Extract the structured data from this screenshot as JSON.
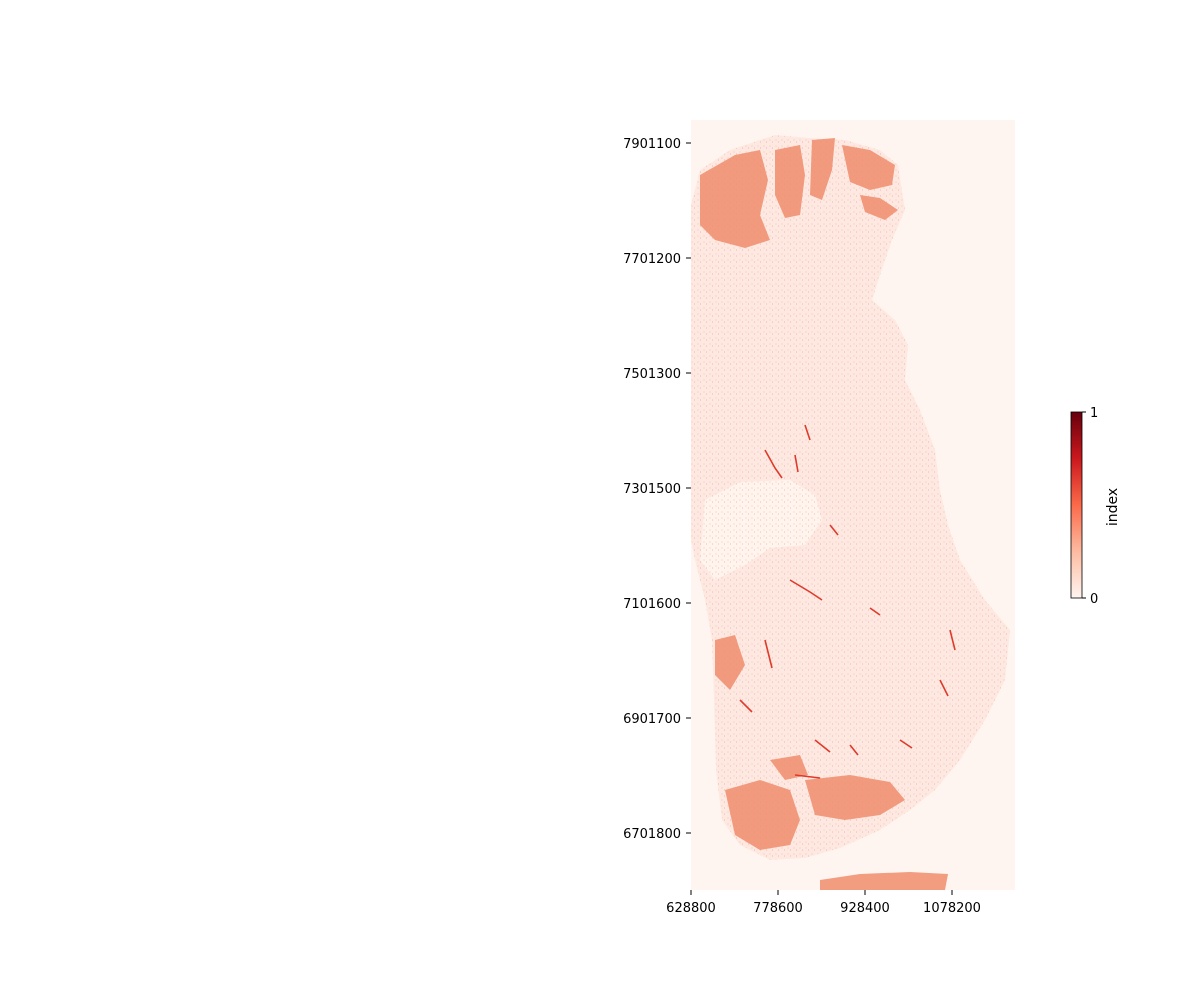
{
  "map": {
    "colormap": "Reds",
    "colors": {
      "background_fill": "#fff5f0",
      "land_fill": "#fde9e1",
      "dense_fill": "#f08c6c",
      "hot_fill": "#de3b2c",
      "max_fill": "#67000d"
    },
    "x_ticks": [
      "628800",
      "778600",
      "928400",
      "1078200"
    ],
    "y_ticks": [
      "7901100",
      "7701200",
      "7501300",
      "7301500",
      "7101600",
      "6901700",
      "6701800"
    ]
  },
  "colorbar": {
    "label": "index",
    "min_label": "0",
    "max_label": "1",
    "range": [
      0,
      1
    ]
  }
}
